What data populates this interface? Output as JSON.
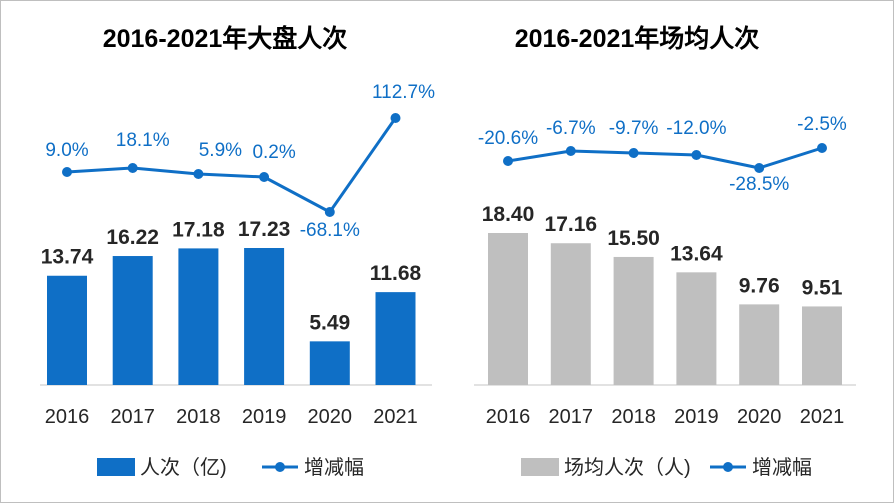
{
  "chart_data": [
    {
      "type": "bar+line",
      "title": "2016-2021年大盘人次",
      "categories": [
        "2016",
        "2017",
        "2018",
        "2019",
        "2020",
        "2021"
      ],
      "bar_series": {
        "name": "人次（亿)",
        "values": [
          13.74,
          16.22,
          17.18,
          17.23,
          5.49,
          11.68
        ],
        "labels": [
          "13.74",
          "16.22",
          "17.18",
          "17.23",
          "5.49",
          "11.68"
        ],
        "color": "#0f6fc6"
      },
      "line_series": {
        "name": "增减幅",
        "values": [
          9.0,
          18.1,
          5.9,
          0.2,
          -68.1,
          112.7
        ],
        "labels": [
          "9.0%",
          "18.1%",
          "5.9%",
          "0.2%",
          "-68.1%",
          "112.7%"
        ],
        "color": "#0f6fc6"
      },
      "ylim": [
        0,
        20
      ],
      "line_ylim": [
        -100,
        140
      ]
    },
    {
      "type": "bar+line",
      "title": "2016-2021年场均人次",
      "categories": [
        "2016",
        "2017",
        "2018",
        "2019",
        "2020",
        "2021"
      ],
      "bar_series": {
        "name": "场均人次（人)",
        "values": [
          18.4,
          17.16,
          15.5,
          13.64,
          9.76,
          9.51
        ],
        "labels": [
          "18.40",
          "17.16",
          "15.50",
          "13.64",
          "9.76",
          "9.51"
        ],
        "color": "#bfbfbf"
      },
      "line_series": {
        "name": "增减幅",
        "values": [
          -20.6,
          -6.7,
          -9.7,
          -12.0,
          -28.5,
          -2.5
        ],
        "labels": [
          "-20.6%",
          "-6.7%",
          "-9.7%",
          "-12.0%",
          "-28.5%",
          "-2.5%"
        ],
        "color": "#0f6fc6"
      },
      "ylim": [
        0,
        20
      ],
      "line_ylim": [
        -100,
        60
      ]
    }
  ],
  "colors": {
    "line": "#0f6fc6",
    "axis": "#d9d9d9",
    "label_text": "#262626"
  }
}
